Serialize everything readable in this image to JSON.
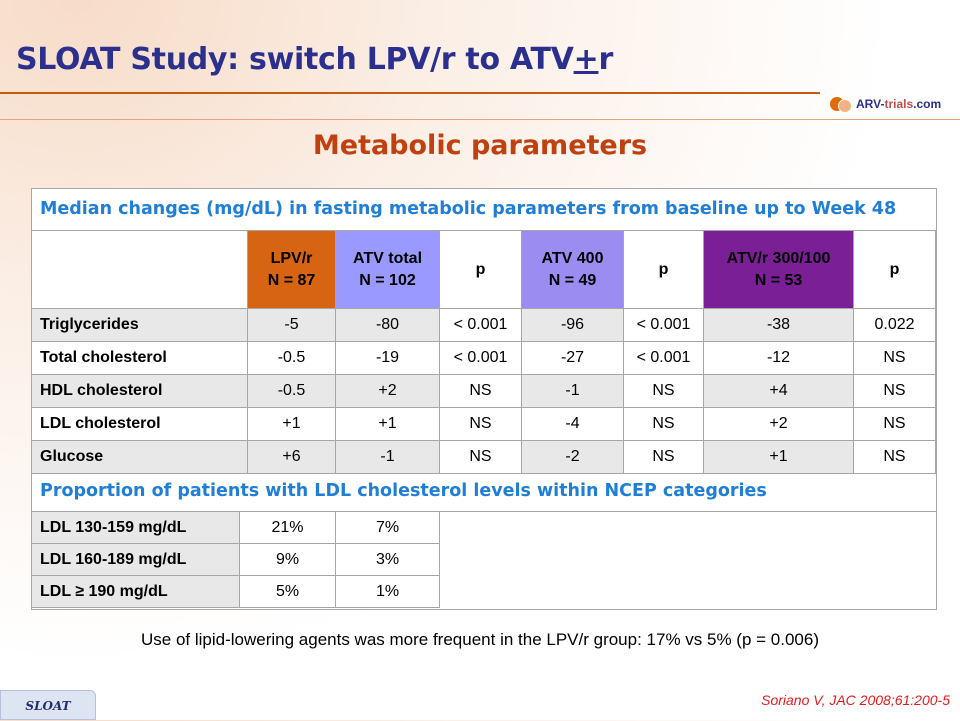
{
  "title": {
    "text": "SLOAT Study: switch LPV/r to ATV",
    "plusminus": "+",
    "suffix": "r"
  },
  "logo": {
    "prefix": "ARV-",
    "name": "trials",
    "suffix": ".com"
  },
  "subtitle": "Metabolic parameters",
  "table1": {
    "header": "Median changes (mg/dL) in fasting metabolic parameters from baseline up to Week 48",
    "columns": [
      {
        "line1": "LPV/r",
        "line2": "N = 87"
      },
      {
        "line1": "ATV total",
        "line2": "N = 102"
      },
      {
        "line1": "p",
        "line2": ""
      },
      {
        "line1": "ATV 400",
        "line2": "N = 49"
      },
      {
        "line1": "p",
        "line2": ""
      },
      {
        "line1": "ATV/r 300/100",
        "line2": "N = 53"
      },
      {
        "line1": "p",
        "line2": ""
      }
    ],
    "colors": {
      "lpv": "#d66412",
      "atv_total": "#9999ff",
      "atv400": "#9b8cf2",
      "atvr": "#7a1f95"
    },
    "rows": [
      {
        "label": "Triglycerides",
        "values": [
          "-5",
          "-80",
          "< 0.001",
          "-96",
          "< 0.001",
          "-38",
          "0.022"
        ]
      },
      {
        "label": "Total cholesterol",
        "values": [
          "-0.5",
          "-19",
          "< 0.001",
          "-27",
          "< 0.001",
          "-12",
          "NS"
        ]
      },
      {
        "label": "HDL cholesterol",
        "values": [
          "-0.5",
          "+2",
          "NS",
          "-1",
          "NS",
          "+4",
          "NS"
        ]
      },
      {
        "label": "LDL cholesterol",
        "values": [
          "+1",
          "+1",
          "NS",
          "-4",
          "NS",
          "+2",
          "NS"
        ]
      },
      {
        "label": "Glucose",
        "values": [
          "+6",
          "-1",
          "NS",
          "-2",
          "NS",
          "+1",
          "NS"
        ]
      }
    ]
  },
  "table2": {
    "header": "Proportion of patients with LDL cholesterol levels within NCEP categories",
    "rows": [
      {
        "label": "LDL 130-159 mg/dL",
        "values": [
          "21%",
          "7%"
        ]
      },
      {
        "label": "LDL 160-189 mg/dL",
        "values": [
          "9%",
          "3%"
        ]
      },
      {
        "label": "LDL ≥ 190 mg/dL",
        "values": [
          "5%",
          "1%"
        ]
      }
    ]
  },
  "footnote": "Use of lipid-lowering agents was more frequent in the LPV/r group: 17% vs 5% (p = 0.006)",
  "tab_label": "SLOAT",
  "citation": "Soriano V, JAC 2008;61:200-5"
}
